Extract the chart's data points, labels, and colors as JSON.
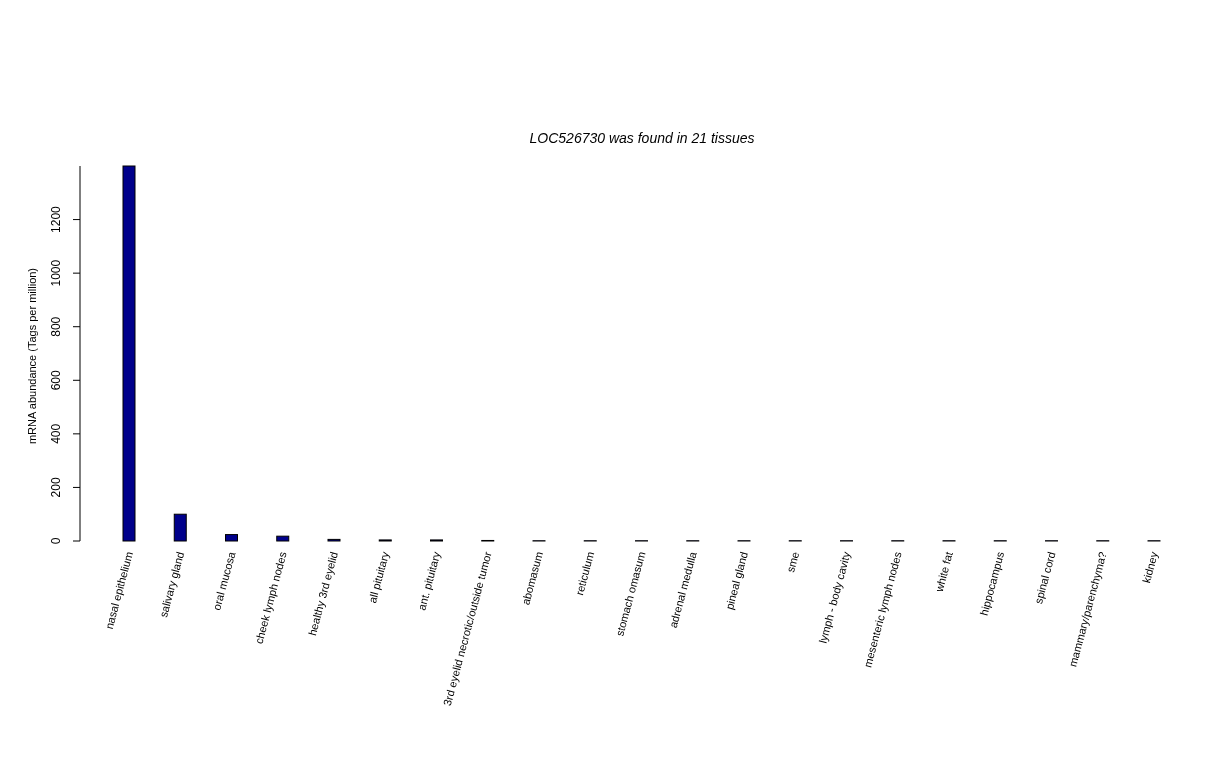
{
  "chart_data": {
    "type": "bar",
    "title": "LOC526730  was found in  21  tissues",
    "ylabel": "mRNA abundance (Tags per million)",
    "categories": [
      "nasal epithelium",
      "salivary gland",
      "oral mucosa",
      "cheek lymph nodes",
      "healthy 3rd eyelid",
      "all pituitary",
      "ant. pituitary",
      "3rd eyelid necrotic/outside tumor",
      "abomasum",
      "reticulum",
      "stomach omasum",
      "adrenal medulla",
      "pineal gland",
      "sme",
      "lymph - body cavity",
      "mesenteric lymph nodes",
      "white fat",
      "hippocampus",
      "spinal cord",
      "mammary/parenchyma?",
      "kidney"
    ],
    "values": [
      1400,
      100,
      24,
      18,
      6,
      4,
      4,
      2,
      1,
      1,
      1,
      1,
      1,
      1,
      1,
      1,
      1,
      1,
      1,
      1,
      1
    ],
    "color": "#00008b",
    "ylim": [
      0,
      1400
    ],
    "yticks": [
      0,
      200,
      400,
      600,
      800,
      1000,
      1200
    ],
    "grid": false
  }
}
